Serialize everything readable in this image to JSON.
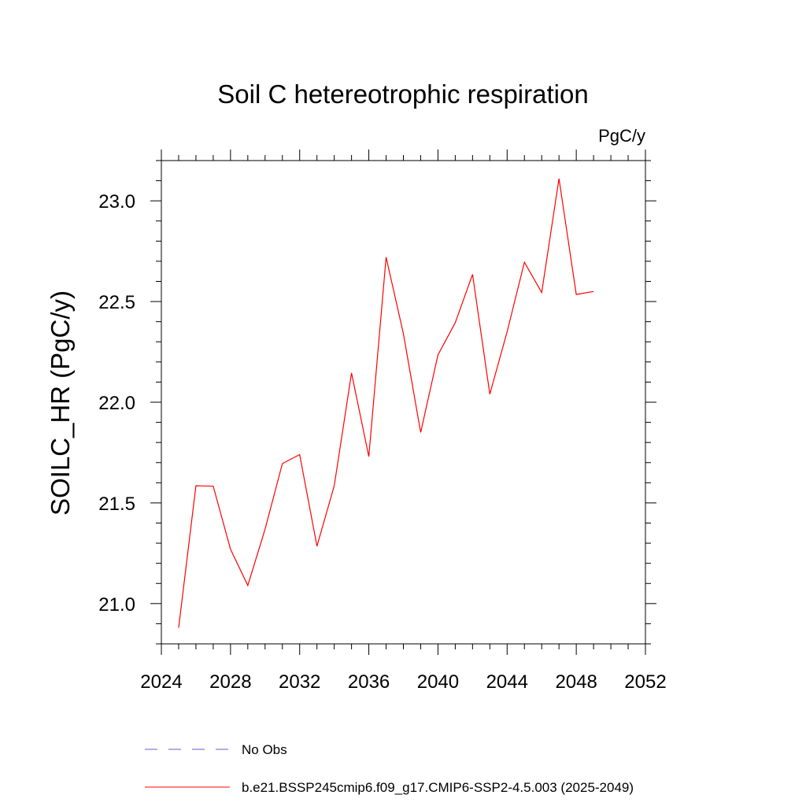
{
  "chart_data": {
    "type": "line",
    "title": "Soil C hetereotrophic respiration",
    "units_label": "PgC/y",
    "ylabel": "SOILC_HR  (PgC/y)",
    "xlabel": "",
    "xlim": [
      2024,
      2052
    ],
    "ylim": [
      20.8,
      23.2
    ],
    "x_ticks": [
      2024,
      2028,
      2032,
      2036,
      2040,
      2044,
      2048,
      2052
    ],
    "y_ticks": [
      21.0,
      21.5,
      22.0,
      22.5,
      23.0
    ],
    "y_tick_labels": [
      "21.0",
      "21.5",
      "22.0",
      "22.5",
      "23.0"
    ],
    "grid": false,
    "legend_position": "bottom",
    "series": [
      {
        "name": "b.e21.BSSP245cmip6.f09_g17.CMIP6-SSP2-4.5.003 (2025-2049)",
        "color": "#ff0000",
        "style": "solid",
        "x": [
          2025,
          2026,
          2027,
          2028,
          2029,
          2030,
          2031,
          2032,
          2033,
          2034,
          2035,
          2036,
          2037,
          2038,
          2039,
          2040,
          2041,
          2042,
          2043,
          2044,
          2045,
          2046,
          2047,
          2048,
          2049
        ],
        "values": [
          20.88,
          21.585,
          21.583,
          21.27,
          21.09,
          21.37,
          21.695,
          21.74,
          21.285,
          21.585,
          22.145,
          21.73,
          22.72,
          22.34,
          21.85,
          22.235,
          22.395,
          22.635,
          22.04,
          22.35,
          22.695,
          22.545,
          23.11,
          22.535,
          22.55
        ]
      }
    ],
    "legend": [
      {
        "label": "No Obs",
        "color": "#6a5acd",
        "style": "dashed"
      },
      {
        "label": "b.e21.BSSP245cmip6.f09_g17.CMIP6-SSP2-4.5.003 (2025-2049)",
        "color": "#ff0000",
        "style": "solid"
      }
    ]
  }
}
